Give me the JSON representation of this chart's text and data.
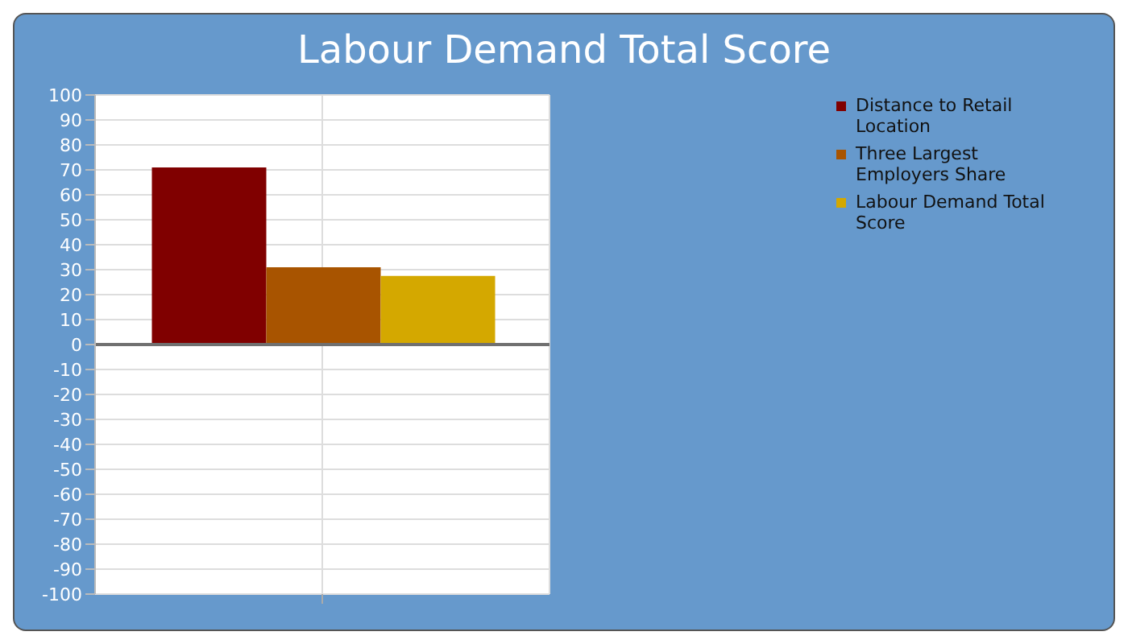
{
  "chart_data": {
    "type": "bar",
    "title": "Labour Demand Total Score",
    "categories": [
      null
    ],
    "series": [
      {
        "name": "Distance to Retail Location",
        "color": "#800000",
        "values": [
          71
        ]
      },
      {
        "name": "Three Largest Employers Share",
        "color": "#a85400",
        "values": [
          31
        ]
      },
      {
        "name": "Labour Demand Total Score",
        "color": "#d4a800",
        "values": [
          27.5
        ]
      }
    ],
    "ylim": [
      -100,
      100
    ],
    "yticks": [
      -100,
      -90,
      -80,
      -70,
      -60,
      -50,
      -40,
      -30,
      -20,
      -10,
      0,
      10,
      20,
      30,
      40,
      50,
      60,
      70,
      80,
      90,
      100
    ],
    "grid": true,
    "legend": "top right"
  }
}
